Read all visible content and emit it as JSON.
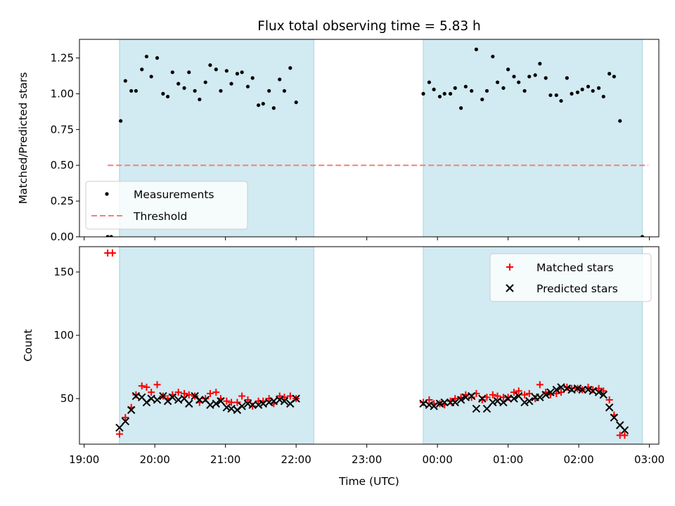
{
  "title": "Flux total observing time = 5.83 h",
  "colors": {
    "shade": "#add8e6",
    "measurement": "#000000",
    "threshold": "#f08080",
    "matched": "#ff0000",
    "predicted": "#000000"
  },
  "chart_data": [
    {
      "type": "scatter",
      "ylabel": "Matched/Predicted stars",
      "xlabel": "",
      "ylim": [
        0,
        1.38
      ],
      "yticks": [
        "0.00",
        "0.25",
        "0.50",
        "0.75",
        "1.00",
        "1.25"
      ],
      "shaded_intervals": [
        [
          "19:30",
          "22:15"
        ],
        [
          "23:48",
          "02:54"
        ]
      ],
      "legend_position": "lower-left",
      "series": [
        {
          "name": "Measurements",
          "marker": "dot",
          "points": [
            [
              "19:20",
              0
            ],
            [
              "19:23",
              0
            ],
            [
              "19:31",
              0.81
            ],
            [
              "19:35",
              1.09
            ],
            [
              "19:40",
              1.02
            ],
            [
              "19:44",
              1.02
            ],
            [
              "19:49",
              1.17
            ],
            [
              "19:53",
              1.26
            ],
            [
              "19:57",
              1.12
            ],
            [
              "20:02",
              1.25
            ],
            [
              "20:07",
              1.0
            ],
            [
              "20:11",
              0.98
            ],
            [
              "20:15",
              1.15
            ],
            [
              "20:20",
              1.07
            ],
            [
              "20:25",
              1.04
            ],
            [
              "20:29",
              1.15
            ],
            [
              "20:34",
              1.02
            ],
            [
              "20:38",
              0.96
            ],
            [
              "20:43",
              1.08
            ],
            [
              "20:47",
              1.2
            ],
            [
              "20:52",
              1.17
            ],
            [
              "20:56",
              1.02
            ],
            [
              "21:01",
              1.16
            ],
            [
              "21:05",
              1.07
            ],
            [
              "21:10",
              1.14
            ],
            [
              "21:14",
              1.15
            ],
            [
              "21:19",
              1.05
            ],
            [
              "21:23",
              1.11
            ],
            [
              "21:28",
              0.92
            ],
            [
              "21:32",
              0.93
            ],
            [
              "21:37",
              1.02
            ],
            [
              "21:41",
              0.9
            ],
            [
              "21:46",
              1.1
            ],
            [
              "21:50",
              1.02
            ],
            [
              "21:55",
              1.18
            ],
            [
              "22:00",
              0.94
            ],
            [
              "23:48",
              1.0
            ],
            [
              "23:53",
              1.08
            ],
            [
              "23:57",
              1.03
            ],
            [
              "00:02",
              0.98
            ],
            [
              "00:06",
              1.0
            ],
            [
              "00:11",
              1.0
            ],
            [
              "00:15",
              1.04
            ],
            [
              "00:20",
              0.9
            ],
            [
              "00:24",
              1.05
            ],
            [
              "00:29",
              1.02
            ],
            [
              "00:33",
              1.31
            ],
            [
              "00:38",
              0.96
            ],
            [
              "00:42",
              1.02
            ],
            [
              "00:47",
              1.26
            ],
            [
              "00:51",
              1.08
            ],
            [
              "00:56",
              1.04
            ],
            [
              "01:00",
              1.17
            ],
            [
              "01:05",
              1.12
            ],
            [
              "01:09",
              1.08
            ],
            [
              "01:14",
              1.02
            ],
            [
              "01:18",
              1.12
            ],
            [
              "01:23",
              1.13
            ],
            [
              "01:27",
              1.21
            ],
            [
              "01:32",
              1.11
            ],
            [
              "01:36",
              0.99
            ],
            [
              "01:41",
              0.99
            ],
            [
              "01:45",
              0.95
            ],
            [
              "01:50",
              1.11
            ],
            [
              "01:54",
              1.0
            ],
            [
              "01:59",
              1.01
            ],
            [
              "02:03",
              1.03
            ],
            [
              "02:08",
              1.05
            ],
            [
              "02:12",
              1.02
            ],
            [
              "02:17",
              1.04
            ],
            [
              "02:21",
              0.98
            ],
            [
              "02:26",
              1.14
            ],
            [
              "02:30",
              1.12
            ],
            [
              "02:35",
              0.81
            ],
            [
              "02:54",
              0.0
            ]
          ]
        },
        {
          "name": "Threshold",
          "style": "dashed",
          "x": [
            "19:20",
            "02:59"
          ],
          "values": [
            0.5,
            0.5
          ]
        }
      ]
    },
    {
      "type": "scatter",
      "ylabel": "Count",
      "xlabel": "Time (UTC)",
      "ylim": [
        14,
        170
      ],
      "yticks": [
        "50",
        "100",
        "150"
      ],
      "xticks": [
        "19:00",
        "20:00",
        "21:00",
        "22:00",
        "23:00",
        "00:00",
        "01:00",
        "02:00",
        "03:00"
      ],
      "shaded_intervals": [
        [
          "19:30",
          "22:15"
        ],
        [
          "23:48",
          "02:54"
        ]
      ],
      "legend_position": "top-right",
      "series": [
        {
          "name": "Matched stars",
          "marker": "plus",
          "points": [
            [
              "19:20",
              165
            ],
            [
              "19:24",
              165
            ],
            [
              "19:30",
              22
            ],
            [
              "19:35",
              35
            ],
            [
              "19:40",
              43
            ],
            [
              "19:44",
              53
            ],
            [
              "19:49",
              60
            ],
            [
              "19:53",
              59
            ],
            [
              "19:57",
              55
            ],
            [
              "20:02",
              61
            ],
            [
              "20:07",
              52
            ],
            [
              "20:11",
              50
            ],
            [
              "20:15",
              53
            ],
            [
              "20:20",
              55
            ],
            [
              "20:25",
              54
            ],
            [
              "20:29",
              53
            ],
            [
              "20:34",
              52
            ],
            [
              "20:38",
              47
            ],
            [
              "20:43",
              50
            ],
            [
              "20:47",
              54
            ],
            [
              "20:52",
              55
            ],
            [
              "20:56",
              50
            ],
            [
              "21:01",
              48
            ],
            [
              "21:05",
              47
            ],
            [
              "21:10",
              47
            ],
            [
              "21:14",
              52
            ],
            [
              "21:19",
              49
            ],
            [
              "21:23",
              44
            ],
            [
              "21:28",
              48
            ],
            [
              "21:32",
              48
            ],
            [
              "21:37",
              50
            ],
            [
              "21:41",
              46
            ],
            [
              "21:46",
              52
            ],
            [
              "21:50",
              51
            ],
            [
              "21:55",
              52
            ],
            [
              "22:00",
              50
            ],
            [
              "23:48",
              47
            ],
            [
              "23:53",
              49
            ],
            [
              "23:57",
              46
            ],
            [
              "00:02",
              46
            ],
            [
              "00:06",
              45
            ],
            [
              "00:11",
              48
            ],
            [
              "00:15",
              50
            ],
            [
              "00:20",
              51
            ],
            [
              "00:24",
              53
            ],
            [
              "00:29",
              51
            ],
            [
              "00:33",
              54
            ],
            [
              "00:38",
              49
            ],
            [
              "00:42",
              51
            ],
            [
              "00:47",
              53
            ],
            [
              "00:51",
              52
            ],
            [
              "00:56",
              51
            ],
            [
              "01:00",
              51
            ],
            [
              "01:05",
              55
            ],
            [
              "01:09",
              56
            ],
            [
              "01:14",
              53
            ],
            [
              "01:18",
              54
            ],
            [
              "01:23",
              50
            ],
            [
              "01:27",
              61
            ],
            [
              "01:32",
              55
            ],
            [
              "01:36",
              53
            ],
            [
              "01:41",
              54
            ],
            [
              "01:45",
              55
            ],
            [
              "01:50",
              59
            ],
            [
              "01:54",
              58
            ],
            [
              "01:59",
              58
            ],
            [
              "02:03",
              57
            ],
            [
              "02:08",
              59
            ],
            [
              "02:12",
              57
            ],
            [
              "02:17",
              58
            ],
            [
              "02:21",
              56
            ],
            [
              "02:26",
              49
            ],
            [
              "02:30",
              37
            ],
            [
              "02:35",
              21
            ],
            [
              "02:39",
              21
            ]
          ]
        },
        {
          "name": "Predicted stars",
          "marker": "x",
          "points": [
            [
              "19:30",
              27
            ],
            [
              "19:35",
              32
            ],
            [
              "19:40",
              41
            ],
            [
              "19:44",
              52
            ],
            [
              "19:49",
              51
            ],
            [
              "19:53",
              47
            ],
            [
              "19:57",
              50
            ],
            [
              "20:02",
              49
            ],
            [
              "20:07",
              52
            ],
            [
              "20:11",
              48
            ],
            [
              "20:15",
              51
            ],
            [
              "20:20",
              49
            ],
            [
              "20:25",
              50
            ],
            [
              "20:29",
              46
            ],
            [
              "20:34",
              52
            ],
            [
              "20:38",
              49
            ],
            [
              "20:43",
              49
            ],
            [
              "20:47",
              45
            ],
            [
              "20:52",
              46
            ],
            [
              "20:56",
              48
            ],
            [
              "21:01",
              43
            ],
            [
              "21:05",
              42
            ],
            [
              "21:10",
              41
            ],
            [
              "21:14",
              44
            ],
            [
              "21:19",
              46
            ],
            [
              "21:23",
              45
            ],
            [
              "21:28",
              45
            ],
            [
              "21:32",
              46
            ],
            [
              "21:37",
              47
            ],
            [
              "21:41",
              48
            ],
            [
              "21:46",
              49
            ],
            [
              "21:50",
              48
            ],
            [
              "21:55",
              46
            ],
            [
              "22:00",
              50
            ],
            [
              "23:48",
              46
            ],
            [
              "23:53",
              45
            ],
            [
              "23:57",
              44
            ],
            [
              "00:02",
              46
            ],
            [
              "00:06",
              47
            ],
            [
              "00:11",
              47
            ],
            [
              "00:15",
              47
            ],
            [
              "00:20",
              49
            ],
            [
              "00:24",
              51
            ],
            [
              "00:29",
              52
            ],
            [
              "00:33",
              42
            ],
            [
              "00:38",
              50
            ],
            [
              "00:42",
              42
            ],
            [
              "00:47",
              47
            ],
            [
              "00:51",
              48
            ],
            [
              "00:56",
              47
            ],
            [
              "01:00",
              50
            ],
            [
              "01:05",
              50
            ],
            [
              "01:09",
              52
            ],
            [
              "01:14",
              47
            ],
            [
              "01:18",
              48
            ],
            [
              "01:23",
              51
            ],
            [
              "01:27",
              51
            ],
            [
              "01:32",
              53
            ],
            [
              "01:36",
              55
            ],
            [
              "01:41",
              57
            ],
            [
              "01:45",
              59
            ],
            [
              "01:50",
              58
            ],
            [
              "01:54",
              57
            ],
            [
              "01:59",
              58
            ],
            [
              "02:03",
              57
            ],
            [
              "02:08",
              57
            ],
            [
              "02:12",
              56
            ],
            [
              "02:17",
              55
            ],
            [
              "02:21",
              53
            ],
            [
              "02:26",
              43
            ],
            [
              "02:30",
              35
            ],
            [
              "02:35",
              29
            ],
            [
              "02:39",
              25
            ]
          ]
        }
      ]
    }
  ]
}
